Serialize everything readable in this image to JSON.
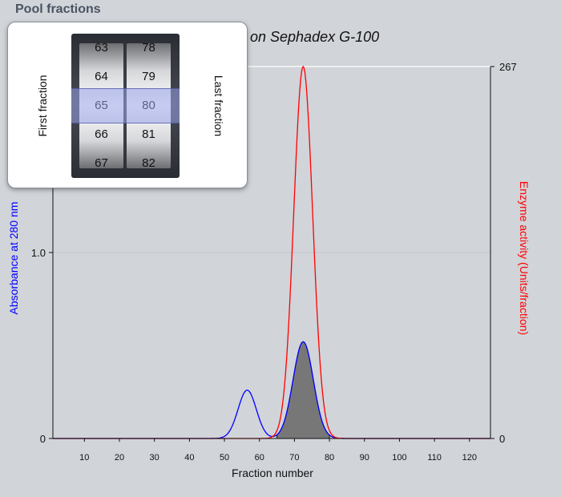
{
  "header": {
    "title": "Pool fractions"
  },
  "picker": {
    "first_label": "First fraction",
    "last_label": "Last fraction",
    "first_options": [
      "63",
      "64",
      "65",
      "66",
      "67"
    ],
    "last_options": [
      "78",
      "79",
      "80",
      "81",
      "82"
    ],
    "first_selected": "65",
    "last_selected": "80"
  },
  "chart_data": {
    "type": "line",
    "title": "on Sephadex G-100",
    "xlabel": "Fraction number",
    "ylabel_left": "Absorbance at 280 nm",
    "ylabel_right": "Enzyme activity (Units/fraction)",
    "xlim": [
      1,
      126
    ],
    "ylim_left": [
      0,
      2.0
    ],
    "ylim_right": [
      0,
      267
    ],
    "x_ticks": [
      10,
      20,
      30,
      40,
      50,
      60,
      70,
      80,
      90,
      100,
      110,
      120
    ],
    "y_left_tick_labels": [
      "0",
      "1.0"
    ],
    "y_left_ticks": [
      0,
      1.0
    ],
    "y_right_tick_labels": [
      "0",
      "267"
    ],
    "y_right_ticks": [
      0,
      267
    ],
    "series": [
      {
        "color": "#0000ff",
        "axis": "left",
        "peaks": [
          {
            "center": 56.5,
            "height": 0.26,
            "sigma": 2.6
          },
          {
            "center": 72.5,
            "height": 0.52,
            "sigma": 2.9
          }
        ]
      },
      {
        "color": "#ff0000",
        "axis": "right",
        "peaks": [
          {
            "center": 72.5,
            "height": 267,
            "sigma": 2.7
          }
        ]
      }
    ],
    "pooled_range": [
      65,
      80
    ],
    "pooled_fill": "#777777"
  },
  "colors": {
    "background": "#d1d4d9",
    "left_axis": "#0000ff",
    "right_axis": "#ff0000"
  }
}
